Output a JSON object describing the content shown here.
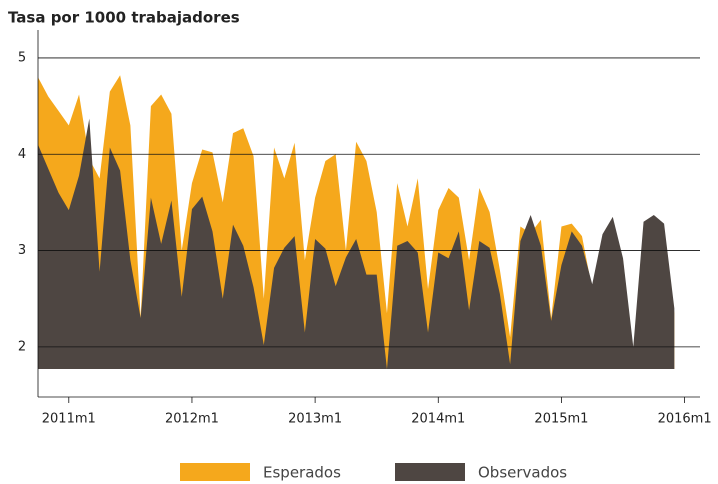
{
  "chart_data": {
    "type": "area",
    "title": "Tasa por 1000 trabajadores",
    "x": [
      0,
      1,
      2,
      3,
      4,
      5,
      6,
      7,
      8,
      9,
      10,
      11,
      12,
      13,
      14,
      15,
      16,
      17,
      18,
      19,
      20,
      21,
      22,
      23,
      24,
      25,
      26,
      27,
      28,
      29,
      30,
      31,
      32,
      33,
      34,
      35,
      36,
      37,
      38,
      39,
      40,
      41,
      42,
      43,
      44,
      45,
      46,
      47,
      48,
      49,
      50,
      51,
      52,
      53,
      54,
      55,
      56,
      57,
      58,
      59,
      60,
      61,
      62
    ],
    "series": [
      {
        "name": "Esperados",
        "color": "#f5a81c",
        "values": [
          4.8,
          4.6,
          4.45,
          4.3,
          4.62,
          3.95,
          3.75,
          4.65,
          4.82,
          4.3,
          2.3,
          4.5,
          4.62,
          4.42,
          3.0,
          3.7,
          4.05,
          4.02,
          3.5,
          4.22,
          4.27,
          3.98,
          2.5,
          4.07,
          3.75,
          4.12,
          2.9,
          3.55,
          3.93,
          4.0,
          3.0,
          4.13,
          3.93,
          3.4,
          2.35,
          3.7,
          3.25,
          3.75,
          2.6,
          3.42,
          3.65,
          3.55,
          2.9,
          3.65,
          3.4,
          2.8,
          2.1,
          3.25,
          3.18,
          3.32,
          2.3,
          3.25,
          3.28,
          3.15,
          2.6,
          3.1,
          3.3,
          2.9,
          1.95,
          3.25,
          3.3,
          3.2,
          2.35
        ]
      },
      {
        "name": "Observados",
        "color": "#4e4642",
        "values": [
          4.1,
          3.85,
          3.6,
          3.42,
          3.78,
          4.37,
          2.78,
          4.07,
          3.83,
          2.9,
          2.3,
          3.55,
          3.07,
          3.52,
          2.52,
          3.43,
          3.56,
          3.2,
          2.5,
          3.27,
          3.05,
          2.62,
          2.02,
          2.82,
          3.03,
          3.15,
          2.15,
          3.12,
          3.02,
          2.63,
          2.93,
          3.12,
          2.75,
          2.75,
          1.77,
          3.05,
          3.1,
          2.98,
          2.15,
          2.98,
          2.92,
          3.2,
          2.38,
          3.1,
          3.03,
          2.55,
          1.82,
          3.1,
          3.37,
          3.05,
          2.27,
          2.85,
          3.2,
          3.05,
          2.65,
          3.17,
          3.35,
          2.92,
          2.0,
          3.3,
          3.37,
          3.28,
          2.4
        ]
      }
    ],
    "xlim": [
      0,
      64.5
    ],
    "xticks": [
      {
        "value": 3,
        "label": "2011m1"
      },
      {
        "value": 15,
        "label": "2012m1"
      },
      {
        "value": 27,
        "label": "2013m1"
      },
      {
        "value": 39,
        "label": "2014m1"
      },
      {
        "value": 51,
        "label": "2015m1"
      },
      {
        "value": 63,
        "label": "2016m1"
      }
    ],
    "ylim": [
      1.48,
      5.29
    ],
    "yticks": [
      2,
      3,
      4,
      5
    ],
    "grid": true
  }
}
